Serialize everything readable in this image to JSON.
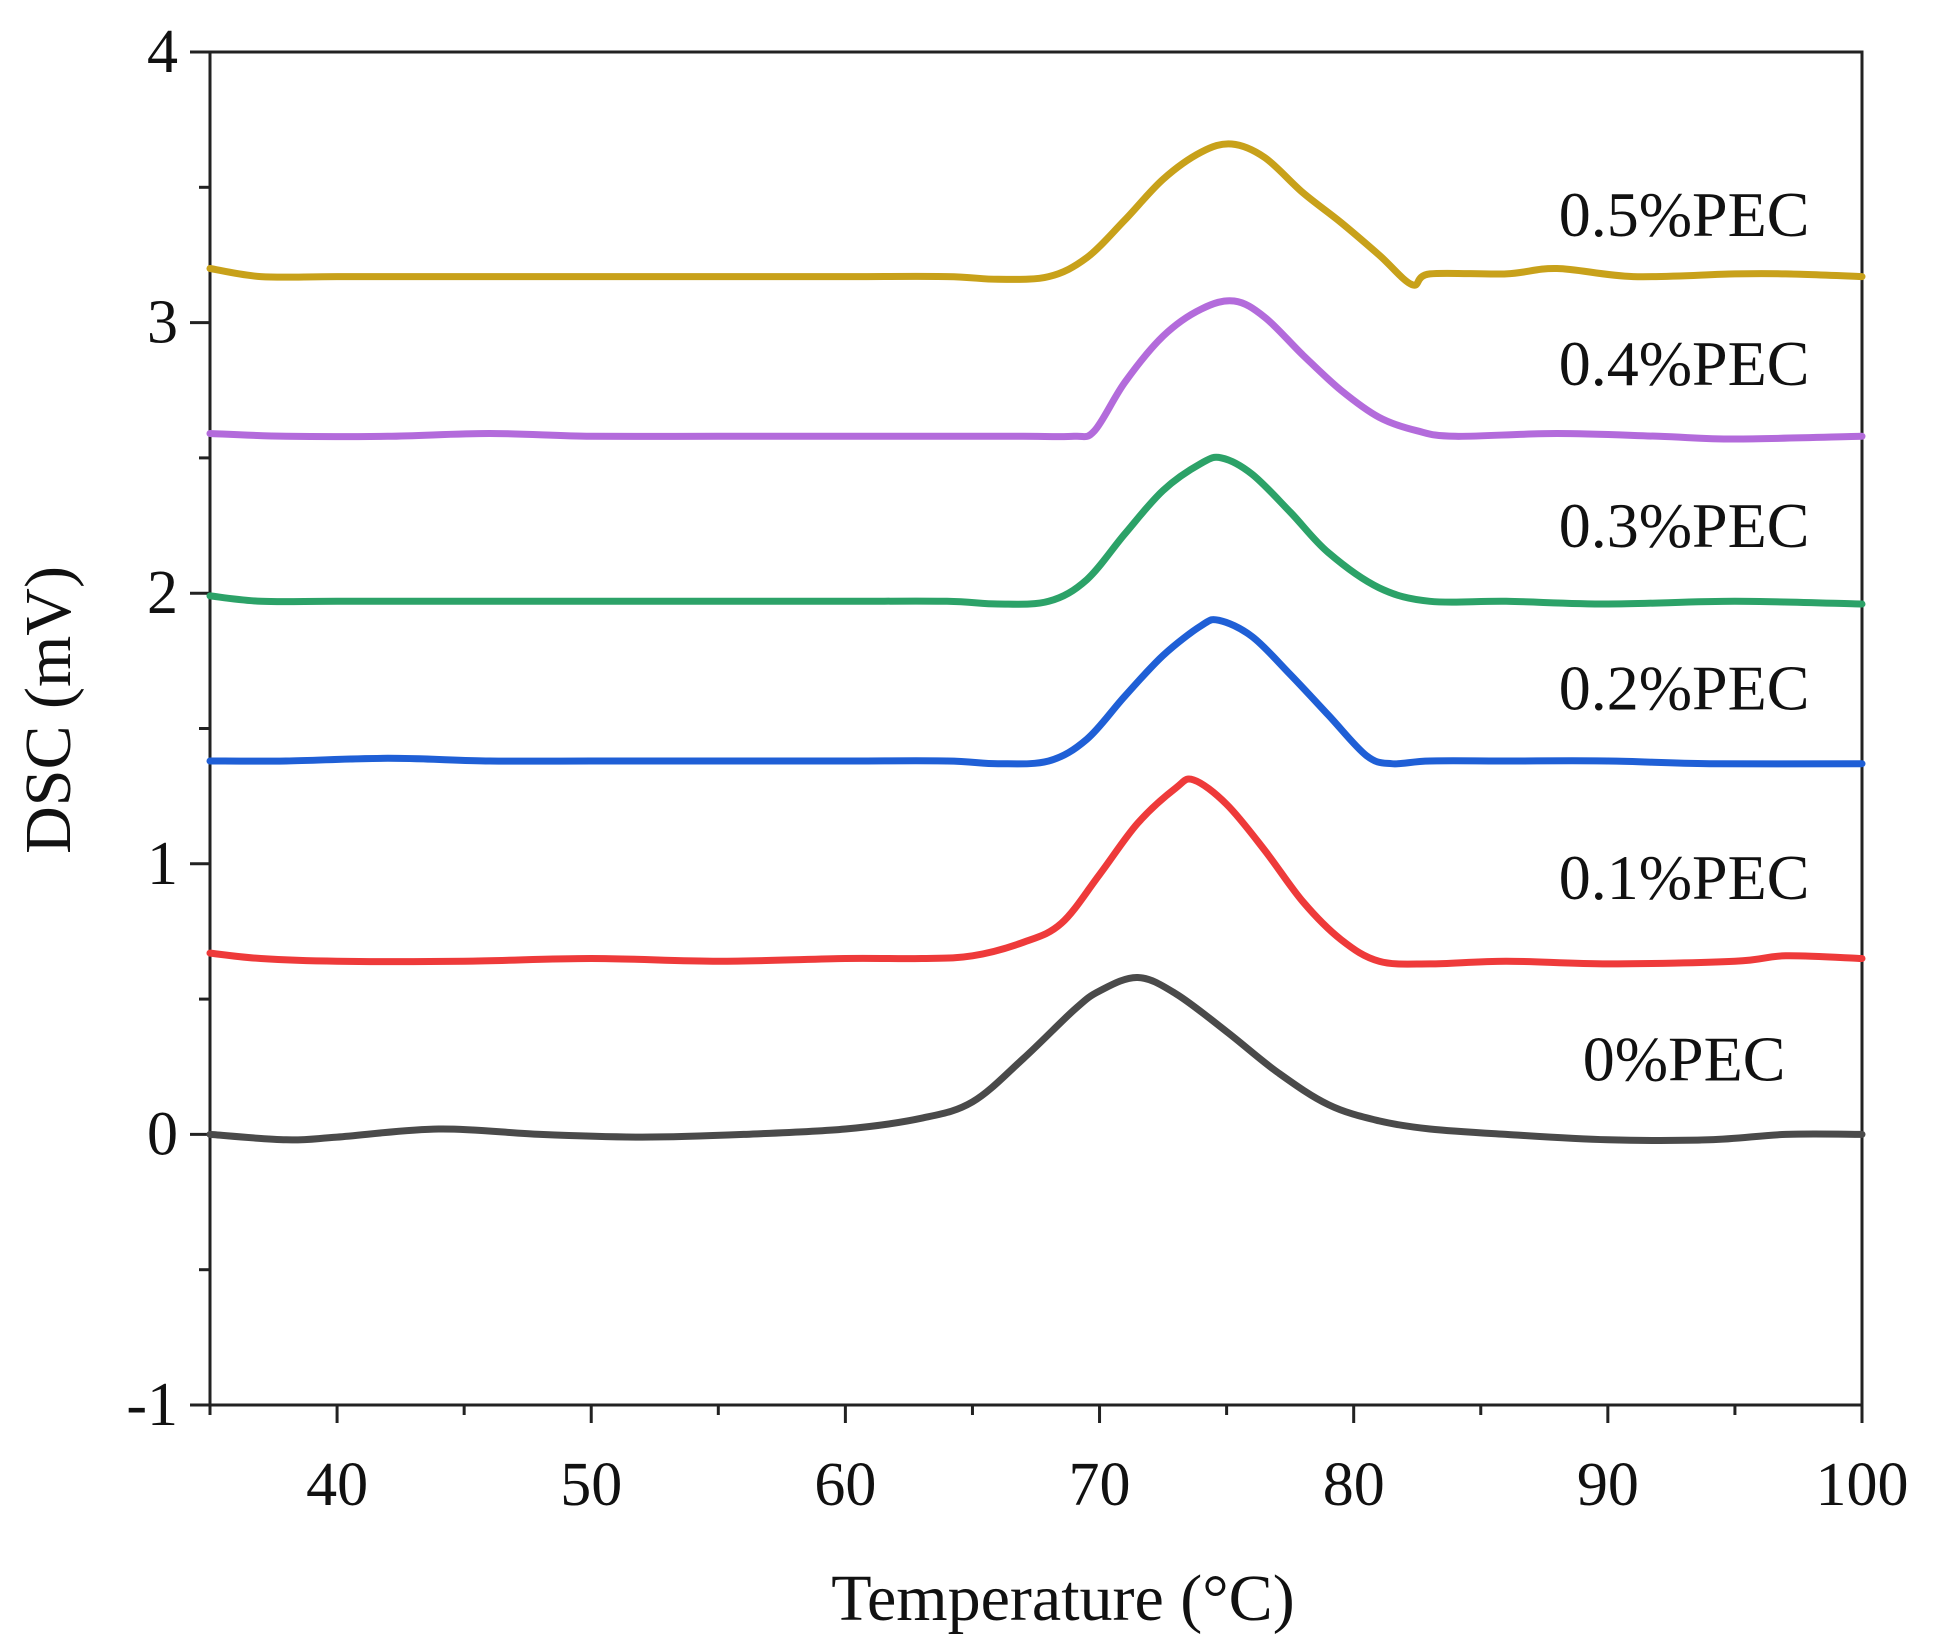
{
  "chart_data": {
    "type": "line",
    "title": "",
    "xlabel": "Temperature (°C)",
    "ylabel": "DSC (mV)",
    "xlim": [
      35,
      100
    ],
    "ylim": [
      -1,
      4
    ],
    "x_ticks": [
      40,
      50,
      60,
      70,
      80,
      90,
      100
    ],
    "x_tick_labels": [
      "40",
      "50",
      "60",
      "70",
      "80",
      "90",
      "100"
    ],
    "y_ticks": [
      -1,
      0,
      1,
      2,
      3,
      4
    ],
    "y_tick_labels": [
      "-1",
      "0",
      "1",
      "2",
      "3",
      "4"
    ],
    "grid": false,
    "series": [
      {
        "name": "0%PEC",
        "color": "#4a4a4a",
        "points": [
          [
            35,
            0.0
          ],
          [
            38,
            -0.02
          ],
          [
            40,
            -0.01
          ],
          [
            44,
            0.02
          ],
          [
            48,
            0.0
          ],
          [
            52,
            -0.01
          ],
          [
            56,
            0.0
          ],
          [
            60,
            0.02
          ],
          [
            63,
            0.06
          ],
          [
            65,
            0.12
          ],
          [
            67,
            0.28
          ],
          [
            69,
            0.46
          ],
          [
            70,
            0.53
          ],
          [
            71.5,
            0.58
          ],
          [
            73,
            0.52
          ],
          [
            75,
            0.38
          ],
          [
            77,
            0.23
          ],
          [
            79,
            0.11
          ],
          [
            81,
            0.05
          ],
          [
            83,
            0.02
          ],
          [
            86,
            0.0
          ],
          [
            90,
            -0.02
          ],
          [
            94,
            -0.02
          ],
          [
            97,
            0.0
          ],
          [
            100,
            0.0
          ]
        ]
      },
      {
        "name": "0.1%PEC",
        "color": "#ee3a3a",
        "points": [
          [
            35,
            0.67
          ],
          [
            37,
            0.65
          ],
          [
            40,
            0.64
          ],
          [
            45,
            0.64
          ],
          [
            50,
            0.65
          ],
          [
            55,
            0.64
          ],
          [
            60,
            0.65
          ],
          [
            63,
            0.65
          ],
          [
            65,
            0.66
          ],
          [
            67,
            0.71
          ],
          [
            68.5,
            0.78
          ],
          [
            70,
            0.96
          ],
          [
            71.5,
            1.15
          ],
          [
            73,
            1.28
          ],
          [
            73.7,
            1.31
          ],
          [
            75,
            1.22
          ],
          [
            76.5,
            1.05
          ],
          [
            78,
            0.86
          ],
          [
            79.5,
            0.72
          ],
          [
            81,
            0.64
          ],
          [
            83,
            0.63
          ],
          [
            86,
            0.64
          ],
          [
            90,
            0.63
          ],
          [
            95,
            0.64
          ],
          [
            97,
            0.66
          ],
          [
            100,
            0.65
          ]
        ]
      },
      {
        "name": "0.2%PEC",
        "color": "#1f5fd6",
        "points": [
          [
            35,
            1.38
          ],
          [
            38,
            1.38
          ],
          [
            42,
            1.39
          ],
          [
            46,
            1.38
          ],
          [
            50,
            1.38
          ],
          [
            55,
            1.38
          ],
          [
            60,
            1.38
          ],
          [
            64,
            1.38
          ],
          [
            66,
            1.37
          ],
          [
            68,
            1.38
          ],
          [
            69.5,
            1.46
          ],
          [
            71,
            1.62
          ],
          [
            72.5,
            1.77
          ],
          [
            74,
            1.88
          ],
          [
            74.7,
            1.9
          ],
          [
            76,
            1.84
          ],
          [
            77.5,
            1.7
          ],
          [
            79,
            1.55
          ],
          [
            80.5,
            1.4
          ],
          [
            81.5,
            1.37
          ],
          [
            83,
            1.38
          ],
          [
            86,
            1.38
          ],
          [
            90,
            1.38
          ],
          [
            94,
            1.37
          ],
          [
            100,
            1.37
          ]
        ]
      },
      {
        "name": "0.3%PEC",
        "color": "#2ca268",
        "points": [
          [
            35,
            1.99
          ],
          [
            37,
            1.97
          ],
          [
            40,
            1.97
          ],
          [
            45,
            1.97
          ],
          [
            50,
            1.97
          ],
          [
            55,
            1.97
          ],
          [
            60,
            1.97
          ],
          [
            64,
            1.97
          ],
          [
            66,
            1.96
          ],
          [
            68,
            1.97
          ],
          [
            69.5,
            2.05
          ],
          [
            71,
            2.22
          ],
          [
            72.5,
            2.38
          ],
          [
            74,
            2.48
          ],
          [
            74.8,
            2.5
          ],
          [
            76,
            2.44
          ],
          [
            77.5,
            2.3
          ],
          [
            79,
            2.15
          ],
          [
            81,
            2.02
          ],
          [
            83,
            1.97
          ],
          [
            86,
            1.97
          ],
          [
            90,
            1.96
          ],
          [
            95,
            1.97
          ],
          [
            100,
            1.96
          ]
        ]
      },
      {
        "name": "0.4%PEC",
        "color": "#b36bdb",
        "points": [
          [
            35,
            2.59
          ],
          [
            38,
            2.58
          ],
          [
            42,
            2.58
          ],
          [
            46,
            2.59
          ],
          [
            50,
            2.58
          ],
          [
            55,
            2.58
          ],
          [
            60,
            2.58
          ],
          [
            64,
            2.58
          ],
          [
            67,
            2.58
          ],
          [
            69,
            2.58
          ],
          [
            69.8,
            2.6
          ],
          [
            71,
            2.78
          ],
          [
            72.5,
            2.95
          ],
          [
            74,
            3.05
          ],
          [
            75.3,
            3.08
          ],
          [
            76.5,
            3.02
          ],
          [
            78,
            2.88
          ],
          [
            79.5,
            2.75
          ],
          [
            81,
            2.65
          ],
          [
            82.5,
            2.6
          ],
          [
            84,
            2.58
          ],
          [
            88,
            2.59
          ],
          [
            92,
            2.58
          ],
          [
            95,
            2.57
          ],
          [
            100,
            2.58
          ]
        ]
      },
      {
        "name": "0.5%PEC",
        "color": "#c8a11a",
        "points": [
          [
            35,
            3.2
          ],
          [
            37,
            3.17
          ],
          [
            40,
            3.17
          ],
          [
            45,
            3.17
          ],
          [
            50,
            3.17
          ],
          [
            55,
            3.17
          ],
          [
            60,
            3.17
          ],
          [
            64,
            3.17
          ],
          [
            66,
            3.16
          ],
          [
            68,
            3.17
          ],
          [
            69.5,
            3.24
          ],
          [
            71,
            3.38
          ],
          [
            72.5,
            3.53
          ],
          [
            74,
            3.63
          ],
          [
            75.2,
            3.66
          ],
          [
            76.5,
            3.61
          ],
          [
            78,
            3.48
          ],
          [
            79.5,
            3.37
          ],
          [
            81,
            3.25
          ],
          [
            82.3,
            3.14
          ],
          [
            83,
            3.18
          ],
          [
            86,
            3.18
          ],
          [
            88,
            3.2
          ],
          [
            91,
            3.17
          ],
          [
            95,
            3.18
          ],
          [
            97,
            3.18
          ],
          [
            100,
            3.17
          ]
        ]
      }
    ],
    "annotations": [
      {
        "text": "0%PEC",
        "x": 93,
        "y": 0.2
      },
      {
        "text": "0.1%PEC",
        "x": 93,
        "y": 0.87
      },
      {
        "text": "0.2%PEC",
        "x": 93,
        "y": 1.57
      },
      {
        "text": "0.3%PEC",
        "x": 93,
        "y": 2.17
      },
      {
        "text": "0.4%PEC",
        "x": 93,
        "y": 2.77
      },
      {
        "text": "0.5%PEC",
        "x": 93,
        "y": 3.32
      }
    ]
  }
}
